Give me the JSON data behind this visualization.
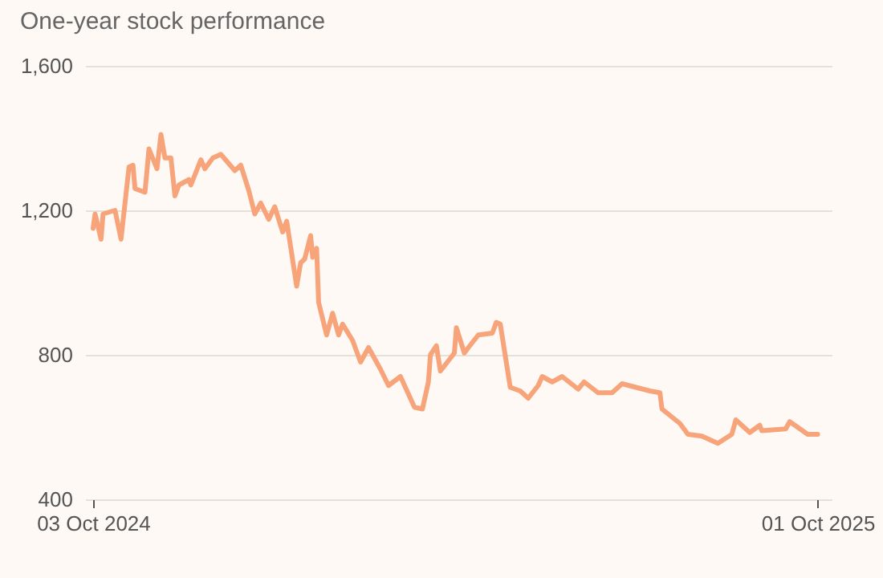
{
  "chart_data": {
    "type": "line",
    "title": "One-year stock performance",
    "x": [
      "2024-10-03",
      "2024-10-04",
      "2024-10-07",
      "2024-10-08",
      "2024-10-14",
      "2024-10-17",
      "2024-10-21",
      "2024-10-23",
      "2024-10-24",
      "2024-10-29",
      "2024-10-31",
      "2024-11-04",
      "2024-11-06",
      "2024-11-08",
      "2024-11-11",
      "2024-11-13",
      "2024-11-15",
      "2024-11-20",
      "2024-11-21",
      "2024-11-26",
      "2024-11-28",
      "2024-12-02",
      "2024-12-06",
      "2024-12-13",
      "2024-12-16",
      "2024-12-20",
      "2024-12-23",
      "2024-12-26",
      "2024-12-30",
      "2025-01-02",
      "2025-01-06",
      "2025-01-08",
      "2025-01-13",
      "2025-01-15",
      "2025-01-17",
      "2025-01-20",
      "2025-01-21",
      "2025-01-23",
      "2025-01-24",
      "2025-01-28",
      "2025-01-31",
      "2025-02-03",
      "2025-02-05",
      "2025-02-10",
      "2025-02-14",
      "2025-02-18",
      "2025-02-24",
      "2025-02-28",
      "2025-03-06",
      "2025-03-13",
      "2025-03-17",
      "2025-03-20",
      "2025-03-21",
      "2025-03-24",
      "2025-03-26",
      "2025-04-02",
      "2025-04-03",
      "2025-04-07",
      "2025-04-09",
      "2025-04-14",
      "2025-04-21",
      "2025-04-23",
      "2025-04-25",
      "2025-04-30",
      "2025-05-05",
      "2025-05-09",
      "2025-05-14",
      "2025-05-16",
      "2025-05-21",
      "2025-05-26",
      "2025-06-03",
      "2025-06-06",
      "2025-06-13",
      "2025-06-20",
      "2025-06-25",
      "2025-07-09",
      "2025-07-14",
      "2025-07-15",
      "2025-07-24",
      "2025-07-28",
      "2025-08-04",
      "2025-08-12",
      "2025-08-19",
      "2025-08-21",
      "2025-08-28",
      "2025-09-02",
      "2025-09-03",
      "2025-09-15",
      "2025-09-17",
      "2025-09-26",
      "2025-10-01"
    ],
    "series": [
      {
        "color": "#f7a47a",
        "values": [
          1150,
          1190,
          1120,
          1190,
          1200,
          1120,
          1320,
          1325,
          1260,
          1250,
          1370,
          1315,
          1410,
          1345,
          1345,
          1240,
          1270,
          1285,
          1270,
          1340,
          1315,
          1345,
          1355,
          1310,
          1325,
          1255,
          1190,
          1220,
          1175,
          1210,
          1140,
          1170,
          990,
          1055,
          1065,
          1130,
          1070,
          1095,
          945,
          855,
          915,
          855,
          885,
          840,
          780,
          820,
          760,
          715,
          740,
          655,
          650,
          725,
          800,
          825,
          755,
          805,
          875,
          805,
          820,
          855,
          860,
          890,
          885,
          710,
          700,
          680,
          715,
          740,
          725,
          740,
          705,
          725,
          695,
          695,
          720,
          700,
          695,
          650,
          610,
          580,
          575,
          555,
          580,
          620,
          585,
          605,
          590,
          595,
          615,
          580,
          580
        ]
      }
    ],
    "xlim": [
      "2024-09-29",
      "2025-10-08"
    ],
    "xticks": [
      {
        "value": "2024-10-03",
        "label": "03 Oct 2024"
      },
      {
        "value": "2025-10-01",
        "label": "01 Oct 2025"
      }
    ],
    "ylim": [
      400,
      1600
    ],
    "yticks": [
      {
        "value": 400,
        "label": "400"
      },
      {
        "value": 800,
        "label": "800"
      },
      {
        "value": 1200,
        "label": "1,200"
      },
      {
        "value": 1600,
        "label": "1,600"
      }
    ],
    "grid": "y",
    "line_style": "solid"
  }
}
